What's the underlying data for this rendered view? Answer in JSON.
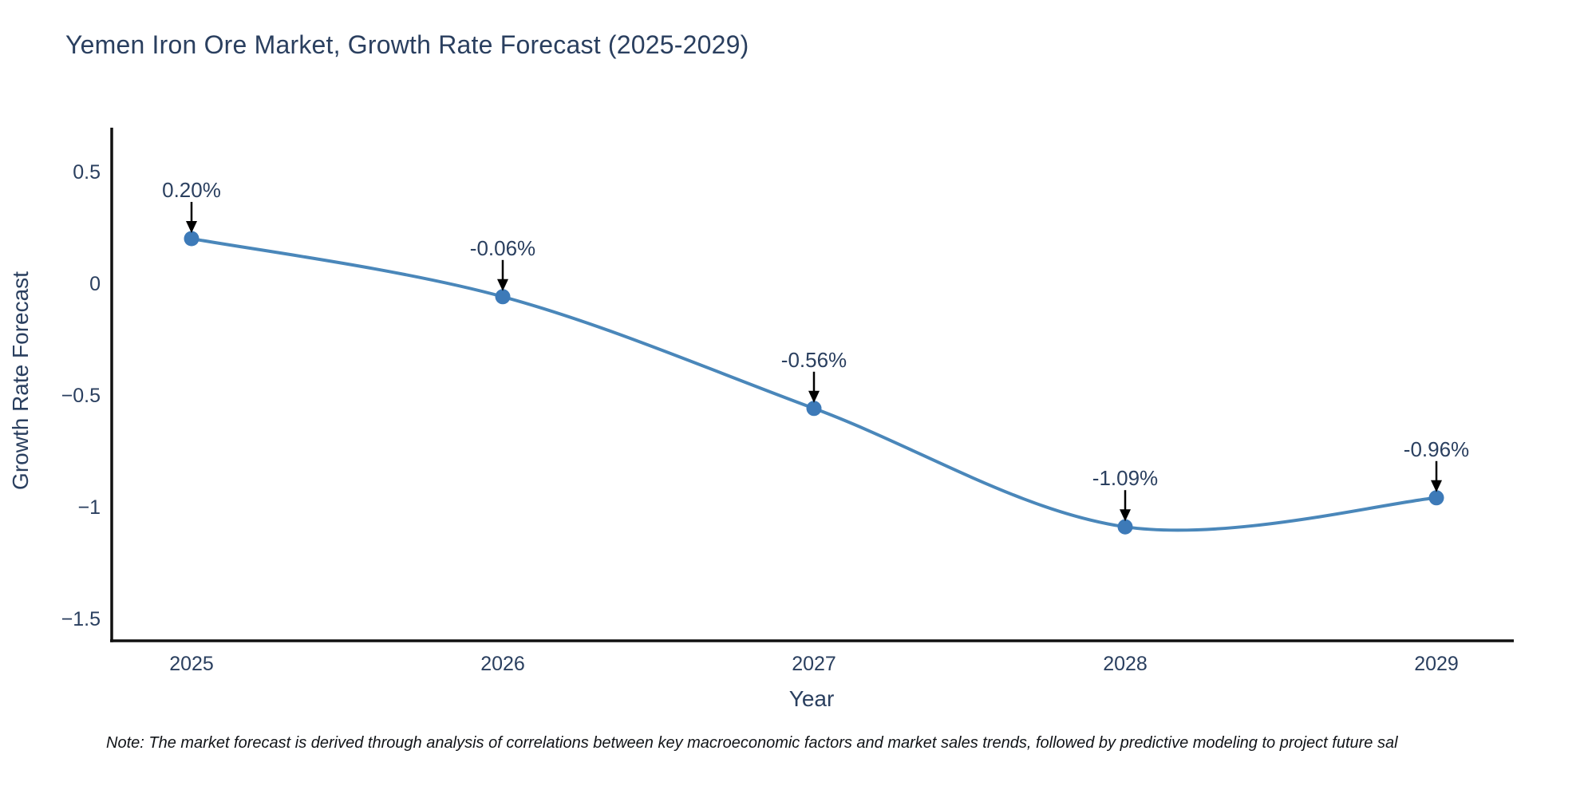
{
  "title": "Yemen Iron Ore Market, Growth Rate Forecast (2025-2029)",
  "note": "Note: The market forecast is derived through analysis of correlations between key macroeconomic factors and market sales trends, followed by predictive modeling to project future sal",
  "chart_data": {
    "type": "line",
    "title": "Yemen Iron Ore Market, Growth Rate Forecast (2025-2029)",
    "xlabel": "Year",
    "ylabel": "Growth Rate Forecast",
    "x": [
      2025,
      2026,
      2027,
      2028,
      2029
    ],
    "x_tick_labels": [
      "2025",
      "2026",
      "2027",
      "2028",
      "2029"
    ],
    "series": [
      {
        "name": "Growth Rate Forecast",
        "values": [
          0.2,
          -0.06,
          -0.56,
          -1.09,
          -0.96
        ]
      }
    ],
    "point_labels": [
      "0.20%",
      "-0.06%",
      "-0.56%",
      "-1.09%",
      "-0.96%"
    ],
    "y_ticks": [
      0.5,
      0,
      -0.5,
      -1,
      -1.5
    ],
    "y_tick_labels": [
      "0.5",
      "0",
      "−0.5",
      "−1",
      "−1.5"
    ],
    "ylim": [
      -1.6,
      0.7
    ],
    "line_shape": "spline",
    "grid": false,
    "legend_position": "none",
    "colors": {
      "line": "#4a87ba",
      "marker": "#3d7ab8",
      "axis": "#111111",
      "text": "#2a3f5f",
      "arrow": "#000000",
      "background": "#ffffff"
    }
  }
}
